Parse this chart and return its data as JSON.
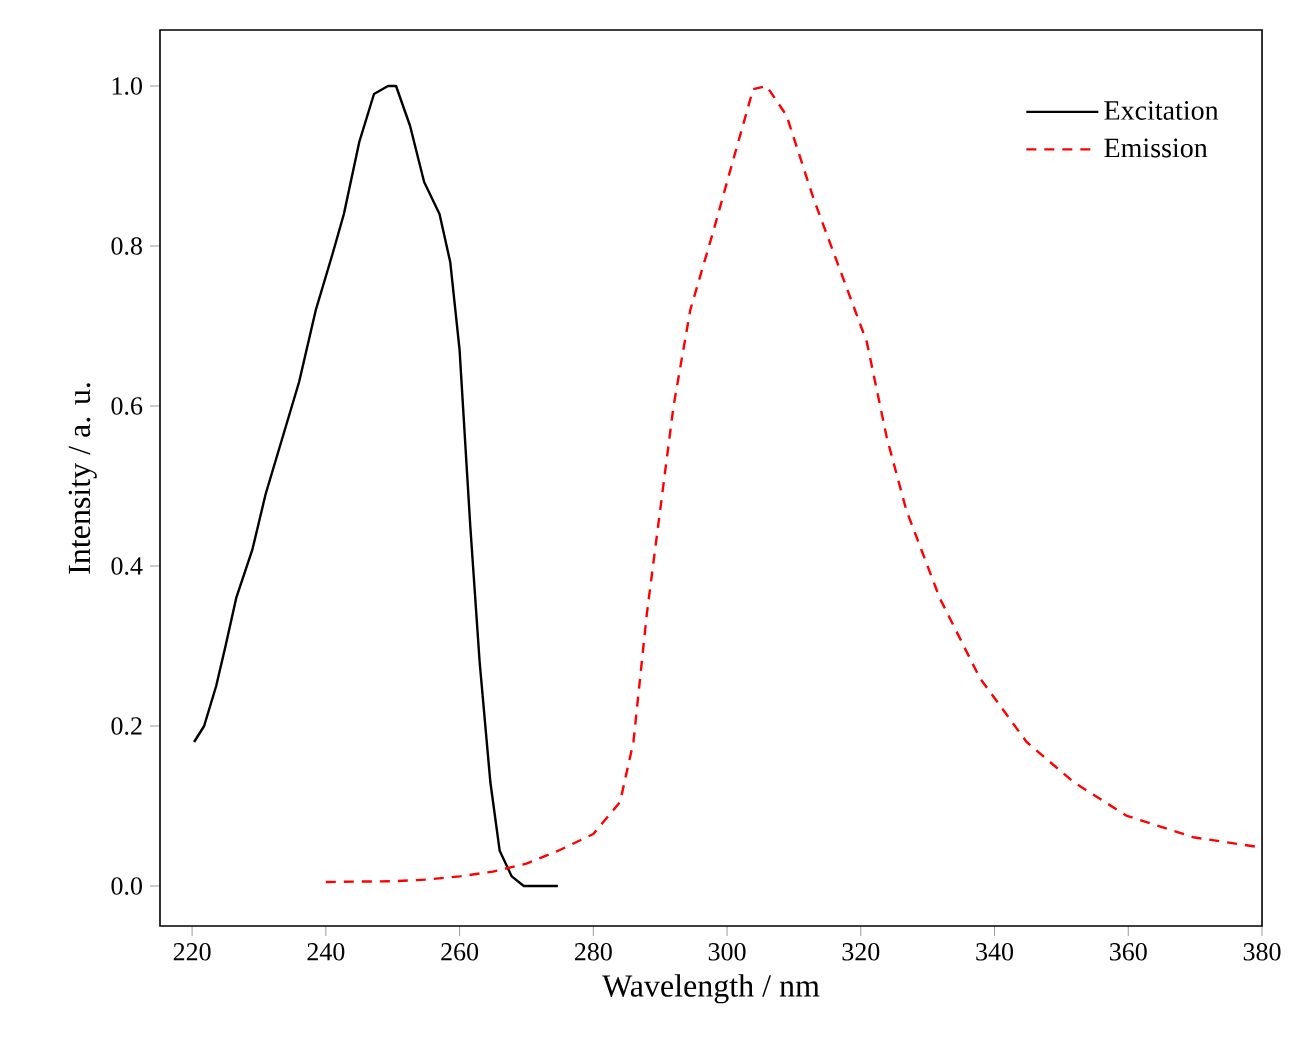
{
  "chart_data": {
    "type": "line",
    "xlabel": "Wavelength / nm",
    "ylabel": "Intensity / a. u.",
    "xlim": [
      215.2,
      380
    ],
    "ylim": [
      -0.05,
      1.07
    ],
    "xticks": [
      220,
      240,
      260,
      280,
      300,
      320,
      340,
      360,
      380
    ],
    "yticks": [
      {
        "value": 0,
        "label": "0.0"
      },
      {
        "value": 0.2,
        "label": "0.2"
      },
      {
        "value": 0.4,
        "label": "0.4"
      },
      {
        "value": 0.6,
        "label": "0.6"
      },
      {
        "value": 0.8,
        "label": "0.8"
      },
      {
        "value": 1,
        "label": "1.0"
      }
    ],
    "grid": false,
    "legend": "top right",
    "marker": "none",
    "series": [
      {
        "name": "Excitation",
        "color": "#000000",
        "line_style": "solid",
        "x": [
          220.3,
          221.8,
          223.6,
          225,
          226.6,
          229,
          231,
          233.5,
          236,
          238.5,
          241,
          242.7,
          245,
          247.2,
          249.3,
          250.5,
          252.6,
          254.7,
          257,
          258.6,
          260,
          261.6,
          263,
          264.6,
          266,
          267.8,
          269.6,
          274.7
        ],
        "values": [
          0.18,
          0.2,
          0.25,
          0.3,
          0.36,
          0.42,
          0.49,
          0.56,
          0.63,
          0.72,
          0.79,
          0.84,
          0.93,
          0.99,
          1.0,
          1.0,
          0.95,
          0.88,
          0.84,
          0.78,
          0.67,
          0.45,
          0.28,
          0.13,
          0.044,
          0.012,
          0.0,
          0.0
        ]
      },
      {
        "name": "Emission",
        "color": "#ff0000",
        "line_style": "dashed",
        "x": [
          240,
          250,
          255,
          260,
          265,
          270,
          275,
          280,
          284,
          286,
          288,
          290,
          292,
          294.5,
          298,
          301,
          303.9,
          305.9,
          308.9,
          312.9,
          316.9,
          320.9,
          323.9,
          326.8,
          331.8,
          337.8,
          344.8,
          351.8,
          359.7,
          369.7,
          379.2
        ],
        "values": [
          0.005,
          0.006,
          0.008,
          0.012,
          0.018,
          0.028,
          0.045,
          0.065,
          0.105,
          0.18,
          0.34,
          0.47,
          0.6,
          0.72,
          0.82,
          0.91,
          0.996,
          1.0,
          0.963,
          0.86,
          0.77,
          0.68,
          0.56,
          0.47,
          0.36,
          0.26,
          0.18,
          0.13,
          0.088,
          0.061,
          0.049
        ]
      }
    ]
  }
}
